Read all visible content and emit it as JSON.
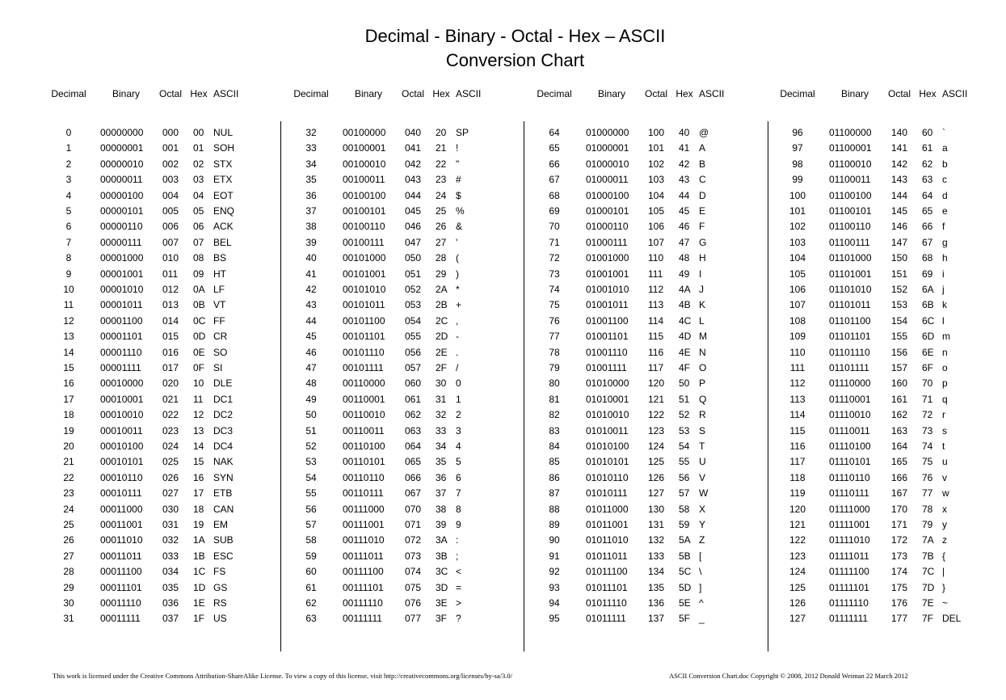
{
  "title": {
    "line1": "Decimal - Binary - Octal - Hex – ASCII",
    "line2": "Conversion Chart"
  },
  "headers": [
    "Decimal",
    "Binary",
    "Octal",
    "Hex",
    "ASCII"
  ],
  "groups": [
    {
      "rows": [
        [
          "0",
          "00000000",
          "000",
          "00",
          "NUL"
        ],
        [
          "1",
          "00000001",
          "001",
          "01",
          "SOH"
        ],
        [
          "2",
          "00000010",
          "002",
          "02",
          "STX"
        ],
        [
          "3",
          "00000011",
          "003",
          "03",
          "ETX"
        ],
        [
          "4",
          "00000100",
          "004",
          "04",
          "EOT"
        ],
        [
          "5",
          "00000101",
          "005",
          "05",
          "ENQ"
        ],
        [
          "6",
          "00000110",
          "006",
          "06",
          "ACK"
        ],
        [
          "7",
          "00000111",
          "007",
          "07",
          "BEL"
        ],
        [
          "8",
          "00001000",
          "010",
          "08",
          "BS"
        ],
        [
          "9",
          "00001001",
          "011",
          "09",
          "HT"
        ],
        [
          "10",
          "00001010",
          "012",
          "0A",
          "LF"
        ],
        [
          "11",
          "00001011",
          "013",
          "0B",
          "VT"
        ],
        [
          "12",
          "00001100",
          "014",
          "0C",
          "FF"
        ],
        [
          "13",
          "00001101",
          "015",
          "0D",
          "CR"
        ],
        [
          "14",
          "00001110",
          "016",
          "0E",
          "SO"
        ],
        [
          "15",
          "00001111",
          "017",
          "0F",
          "SI"
        ],
        [
          "16",
          "00010000",
          "020",
          "10",
          "DLE"
        ],
        [
          "17",
          "00010001",
          "021",
          "11",
          "DC1"
        ],
        [
          "18",
          "00010010",
          "022",
          "12",
          "DC2"
        ],
        [
          "19",
          "00010011",
          "023",
          "13",
          "DC3"
        ],
        [
          "20",
          "00010100",
          "024",
          "14",
          "DC4"
        ],
        [
          "21",
          "00010101",
          "025",
          "15",
          "NAK"
        ],
        [
          "22",
          "00010110",
          "026",
          "16",
          "SYN"
        ],
        [
          "23",
          "00010111",
          "027",
          "17",
          "ETB"
        ],
        [
          "24",
          "00011000",
          "030",
          "18",
          "CAN"
        ],
        [
          "25",
          "00011001",
          "031",
          "19",
          "EM"
        ],
        [
          "26",
          "00011010",
          "032",
          "1A",
          "SUB"
        ],
        [
          "27",
          "00011011",
          "033",
          "1B",
          "ESC"
        ],
        [
          "28",
          "00011100",
          "034",
          "1C",
          "FS"
        ],
        [
          "29",
          "00011101",
          "035",
          "1D",
          "GS"
        ],
        [
          "30",
          "00011110",
          "036",
          "1E",
          "RS"
        ],
        [
          "31",
          "00011111",
          "037",
          "1F",
          "US"
        ]
      ]
    },
    {
      "rows": [
        [
          "32",
          "00100000",
          "040",
          "20",
          "SP"
        ],
        [
          "33",
          "00100001",
          "041",
          "21",
          "!"
        ],
        [
          "34",
          "00100010",
          "042",
          "22",
          "\""
        ],
        [
          "35",
          "00100011",
          "043",
          "23",
          "#"
        ],
        [
          "36",
          "00100100",
          "044",
          "24",
          "$"
        ],
        [
          "37",
          "00100101",
          "045",
          "25",
          "%"
        ],
        [
          "38",
          "00100110",
          "046",
          "26",
          "&"
        ],
        [
          "39",
          "00100111",
          "047",
          "27",
          "'"
        ],
        [
          "40",
          "00101000",
          "050",
          "28",
          "("
        ],
        [
          "41",
          "00101001",
          "051",
          "29",
          ")"
        ],
        [
          "42",
          "00101010",
          "052",
          "2A",
          "*"
        ],
        [
          "43",
          "00101011",
          "053",
          "2B",
          "+"
        ],
        [
          "44",
          "00101100",
          "054",
          "2C",
          ","
        ],
        [
          "45",
          "00101101",
          "055",
          "2D",
          "-"
        ],
        [
          "46",
          "00101110",
          "056",
          "2E",
          "."
        ],
        [
          "47",
          "00101111",
          "057",
          "2F",
          "/"
        ],
        [
          "48",
          "00110000",
          "060",
          "30",
          "0"
        ],
        [
          "49",
          "00110001",
          "061",
          "31",
          "1"
        ],
        [
          "50",
          "00110010",
          "062",
          "32",
          "2"
        ],
        [
          "51",
          "00110011",
          "063",
          "33",
          "3"
        ],
        [
          "52",
          "00110100",
          "064",
          "34",
          "4"
        ],
        [
          "53",
          "00110101",
          "065",
          "35",
          "5"
        ],
        [
          "54",
          "00110110",
          "066",
          "36",
          "6"
        ],
        [
          "55",
          "00110111",
          "067",
          "37",
          "7"
        ],
        [
          "56",
          "00111000",
          "070",
          "38",
          "8"
        ],
        [
          "57",
          "00111001",
          "071",
          "39",
          "9"
        ],
        [
          "58",
          "00111010",
          "072",
          "3A",
          ":"
        ],
        [
          "59",
          "00111011",
          "073",
          "3B",
          ";"
        ],
        [
          "60",
          "00111100",
          "074",
          "3C",
          "<"
        ],
        [
          "61",
          "00111101",
          "075",
          "3D",
          "="
        ],
        [
          "62",
          "00111110",
          "076",
          "3E",
          ">"
        ],
        [
          "63",
          "00111111",
          "077",
          "3F",
          "?"
        ]
      ]
    },
    {
      "rows": [
        [
          "64",
          "01000000",
          "100",
          "40",
          "@"
        ],
        [
          "65",
          "01000001",
          "101",
          "41",
          "A"
        ],
        [
          "66",
          "01000010",
          "102",
          "42",
          "B"
        ],
        [
          "67",
          "01000011",
          "103",
          "43",
          "C"
        ],
        [
          "68",
          "01000100",
          "104",
          "44",
          "D"
        ],
        [
          "69",
          "01000101",
          "105",
          "45",
          "E"
        ],
        [
          "70",
          "01000110",
          "106",
          "46",
          "F"
        ],
        [
          "71",
          "01000111",
          "107",
          "47",
          "G"
        ],
        [
          "72",
          "01001000",
          "110",
          "48",
          "H"
        ],
        [
          "73",
          "01001001",
          "111",
          "49",
          "I"
        ],
        [
          "74",
          "01001010",
          "112",
          "4A",
          "J"
        ],
        [
          "75",
          "01001011",
          "113",
          "4B",
          "K"
        ],
        [
          "76",
          "01001100",
          "114",
          "4C",
          "L"
        ],
        [
          "77",
          "01001101",
          "115",
          "4D",
          "M"
        ],
        [
          "78",
          "01001110",
          "116",
          "4E",
          "N"
        ],
        [
          "79",
          "01001111",
          "117",
          "4F",
          "O"
        ],
        [
          "80",
          "01010000",
          "120",
          "50",
          "P"
        ],
        [
          "81",
          "01010001",
          "121",
          "51",
          "Q"
        ],
        [
          "82",
          "01010010",
          "122",
          "52",
          "R"
        ],
        [
          "83",
          "01010011",
          "123",
          "53",
          "S"
        ],
        [
          "84",
          "01010100",
          "124",
          "54",
          "T"
        ],
        [
          "85",
          "01010101",
          "125",
          "55",
          "U"
        ],
        [
          "86",
          "01010110",
          "126",
          "56",
          "V"
        ],
        [
          "87",
          "01010111",
          "127",
          "57",
          "W"
        ],
        [
          "88",
          "01011000",
          "130",
          "58",
          "X"
        ],
        [
          "89",
          "01011001",
          "131",
          "59",
          "Y"
        ],
        [
          "90",
          "01011010",
          "132",
          "5A",
          "Z"
        ],
        [
          "91",
          "01011011",
          "133",
          "5B",
          "["
        ],
        [
          "92",
          "01011100",
          "134",
          "5C",
          "\\"
        ],
        [
          "93",
          "01011101",
          "135",
          "5D",
          "]"
        ],
        [
          "94",
          "01011110",
          "136",
          "5E",
          "^"
        ],
        [
          "95",
          "01011111",
          "137",
          "5F",
          "_"
        ]
      ]
    },
    {
      "rows": [
        [
          "96",
          "01100000",
          "140",
          "60",
          "`"
        ],
        [
          "97",
          "01100001",
          "141",
          "61",
          "a"
        ],
        [
          "98",
          "01100010",
          "142",
          "62",
          "b"
        ],
        [
          "99",
          "01100011",
          "143",
          "63",
          "c"
        ],
        [
          "100",
          "01100100",
          "144",
          "64",
          "d"
        ],
        [
          "101",
          "01100101",
          "145",
          "65",
          "e"
        ],
        [
          "102",
          "01100110",
          "146",
          "66",
          "f"
        ],
        [
          "103",
          "01100111",
          "147",
          "67",
          "g"
        ],
        [
          "104",
          "01101000",
          "150",
          "68",
          "h"
        ],
        [
          "105",
          "01101001",
          "151",
          "69",
          "i"
        ],
        [
          "106",
          "01101010",
          "152",
          "6A",
          "j"
        ],
        [
          "107",
          "01101011",
          "153",
          "6B",
          "k"
        ],
        [
          "108",
          "01101100",
          "154",
          "6C",
          "l"
        ],
        [
          "109",
          "01101101",
          "155",
          "6D",
          "m"
        ],
        [
          "110",
          "01101110",
          "156",
          "6E",
          "n"
        ],
        [
          "111",
          "01101111",
          "157",
          "6F",
          "o"
        ],
        [
          "112",
          "01110000",
          "160",
          "70",
          "p"
        ],
        [
          "113",
          "01110001",
          "161",
          "71",
          "q"
        ],
        [
          "114",
          "01110010",
          "162",
          "72",
          "r"
        ],
        [
          "115",
          "01110011",
          "163",
          "73",
          "s"
        ],
        [
          "116",
          "01110100",
          "164",
          "74",
          "t"
        ],
        [
          "117",
          "01110101",
          "165",
          "75",
          "u"
        ],
        [
          "118",
          "01110110",
          "166",
          "76",
          "v"
        ],
        [
          "119",
          "01110111",
          "167",
          "77",
          "w"
        ],
        [
          "120",
          "01111000",
          "170",
          "78",
          "x"
        ],
        [
          "121",
          "01111001",
          "171",
          "79",
          "y"
        ],
        [
          "122",
          "01111010",
          "172",
          "7A",
          "z"
        ],
        [
          "123",
          "01111011",
          "173",
          "7B",
          "{"
        ],
        [
          "124",
          "01111100",
          "174",
          "7C",
          "|"
        ],
        [
          "125",
          "01111101",
          "175",
          "7D",
          "}"
        ],
        [
          "126",
          "01111110",
          "176",
          "7E",
          "~"
        ],
        [
          "127",
          "01111111",
          "177",
          "7F",
          "DEL"
        ]
      ]
    }
  ],
  "footer": {
    "license": "This work is licensed under the Creative Commons Attribution-ShareAlike License.  To view a copy of this license, visit  http://creativecommons.org/licenses/by-sa/3.0/",
    "meta": "ASCII Conversion Chart.doc   Copyright © 2008, 2012    Donald Weiman  22 March 2012"
  }
}
